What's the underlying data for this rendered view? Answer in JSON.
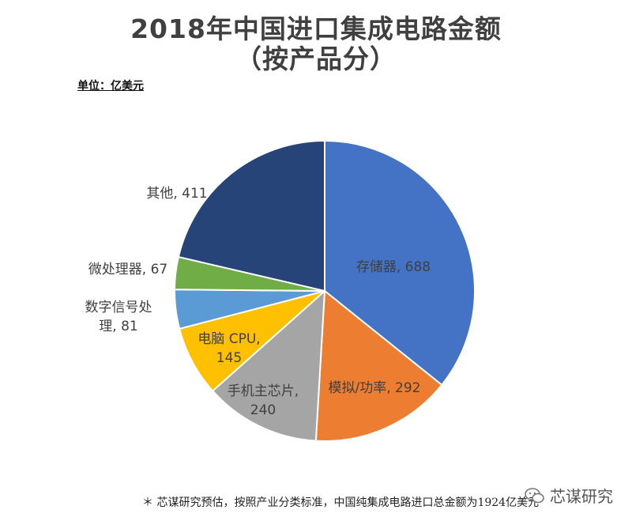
{
  "title_line1": "2018年中国进口集成电路金额",
  "title_line2": "（按产品分）",
  "unit_label": "单位：亿美元",
  "footnote": "＊ 芯谋研究预估，按照产业分类标准，中国纯集成电路进口总金额为1924亿美元",
  "watermark": "芯谋研究",
  "chart_data": {
    "type": "pie",
    "title": "2018年中国进口集成电路金额（按产品分）",
    "unit": "单位：亿美元",
    "slices": [
      {
        "label": "存储器",
        "value": 688,
        "color": "#4472C4",
        "text_color": "#404040"
      },
      {
        "label": "模拟/功率",
        "value": 292,
        "color": "#ED7D31",
        "text_color": "#1f1f1f"
      },
      {
        "label": "手机主芯片",
        "value": 240,
        "color": "#A5A5A5",
        "text_color": "#1f1f1f"
      },
      {
        "label": "电脑 CPU",
        "value": 145,
        "color": "#FFC000",
        "text_color": "#1f1f1f"
      },
      {
        "label": "数字信号处理",
        "value": 81,
        "color": "#5B9BD5",
        "text_color": "#404040"
      },
      {
        "label": "微处理器",
        "value": 67,
        "color": "#70AD47",
        "text_color": "#404040"
      },
      {
        "label": "其他",
        "value": 411,
        "color": "#264478",
        "text_color": "#404040"
      }
    ]
  }
}
